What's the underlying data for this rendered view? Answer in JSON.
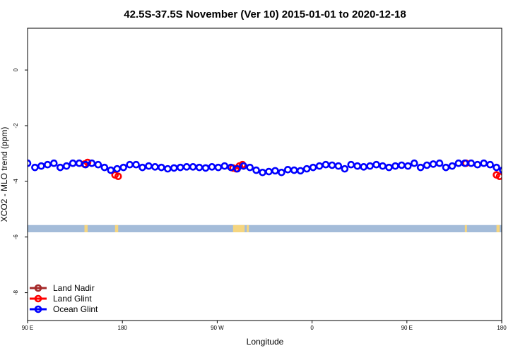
{
  "chart_data": {
    "type": "scatter",
    "title": "42.5S-37.5S November (Ver 10)   2015-01-01 to 2020-12-18",
    "xlabel": "Longitude",
    "ylabel": "XCO2 - MLO trend (ppm)",
    "xlim": [
      90,
      540
    ],
    "ylim": [
      -9,
      1.5
    ],
    "x_ticks": [
      {
        "value": 90,
        "label": "90 E"
      },
      {
        "value": 180,
        "label": "180"
      },
      {
        "value": 270,
        "label": "90 W"
      },
      {
        "value": 360,
        "label": "0"
      },
      {
        "value": 450,
        "label": "90 E"
      },
      {
        "value": 540,
        "label": "180"
      }
    ],
    "y_ticks": [
      {
        "value": 0,
        "label": "0"
      },
      {
        "value": -2,
        "label": "-2"
      },
      {
        "value": -4,
        "label": "-4"
      },
      {
        "value": -6,
        "label": "-6"
      },
      {
        "value": -8,
        "label": "-8"
      }
    ],
    "land_ocean_band": {
      "y_range": [
        -5.83,
        -5.57
      ],
      "ocean_color": "#a4bcd9",
      "land_color": "#f5d57f",
      "land_segments": [
        [
          144,
          147
        ],
        [
          173,
          176
        ],
        [
          285,
          296
        ],
        [
          298,
          300
        ],
        [
          505,
          507
        ],
        [
          535,
          538
        ]
      ]
    },
    "legend": {
      "position": "bottom-left",
      "entries": [
        {
          "label": "Land Nadir",
          "color": "#a52a2a"
        },
        {
          "label": "Land Glint",
          "color": "#ff0000"
        },
        {
          "label": "Ocean Glint",
          "color": "#0000ff"
        }
      ]
    },
    "series": [
      {
        "name": "Land Nadir",
        "color": "#a52a2a",
        "x": [],
        "y": []
      },
      {
        "name": "Land Glint",
        "color": "#ff0000",
        "x": [
          144,
          147,
          173,
          176,
          285,
          288,
          291,
          294,
          506,
          535,
          538
        ],
        "y": [
          -3.38,
          -3.32,
          -3.77,
          -3.82,
          -3.52,
          -3.55,
          -3.45,
          -3.4,
          -3.35,
          -3.77,
          -3.82
        ],
        "draw_first": true
      },
      {
        "name": "Ocean Glint",
        "color": "#0000ff",
        "x": [
          90,
          97,
          103,
          109,
          115,
          121,
          127,
          133,
          139,
          145,
          151,
          157,
          163,
          169,
          175,
          181,
          187,
          193,
          199,
          205,
          211,
          217,
          223,
          229,
          235,
          241,
          247,
          253,
          259,
          265,
          271,
          277,
          283,
          289,
          295,
          301,
          307,
          313,
          319,
          325,
          331,
          337,
          343,
          349,
          355,
          361,
          367,
          373,
          379,
          385,
          391,
          397,
          403,
          409,
          415,
          421,
          427,
          433,
          439,
          445,
          451,
          457,
          463,
          469,
          475,
          481,
          487,
          493,
          499,
          505,
          511,
          517,
          523,
          529,
          535,
          541
        ],
        "y": [
          -3.35,
          -3.5,
          -3.45,
          -3.4,
          -3.35,
          -3.5,
          -3.45,
          -3.35,
          -3.35,
          -3.4,
          -3.35,
          -3.4,
          -3.5,
          -3.6,
          -3.55,
          -3.5,
          -3.4,
          -3.4,
          -3.5,
          -3.45,
          -3.48,
          -3.5,
          -3.55,
          -3.52,
          -3.5,
          -3.48,
          -3.48,
          -3.5,
          -3.52,
          -3.48,
          -3.5,
          -3.45,
          -3.5,
          -3.55,
          -3.45,
          -3.5,
          -3.6,
          -3.68,
          -3.65,
          -3.62,
          -3.68,
          -3.58,
          -3.6,
          -3.62,
          -3.55,
          -3.5,
          -3.45,
          -3.4,
          -3.42,
          -3.45,
          -3.55,
          -3.4,
          -3.45,
          -3.48,
          -3.45,
          -3.4,
          -3.45,
          -3.5,
          -3.45,
          -3.42,
          -3.45,
          -3.35,
          -3.5,
          -3.42,
          -3.38,
          -3.35,
          -3.5,
          -3.45,
          -3.35,
          -3.35,
          -3.35,
          -3.4,
          -3.35,
          -3.4,
          -3.5,
          -3.6
        ]
      }
    ]
  }
}
